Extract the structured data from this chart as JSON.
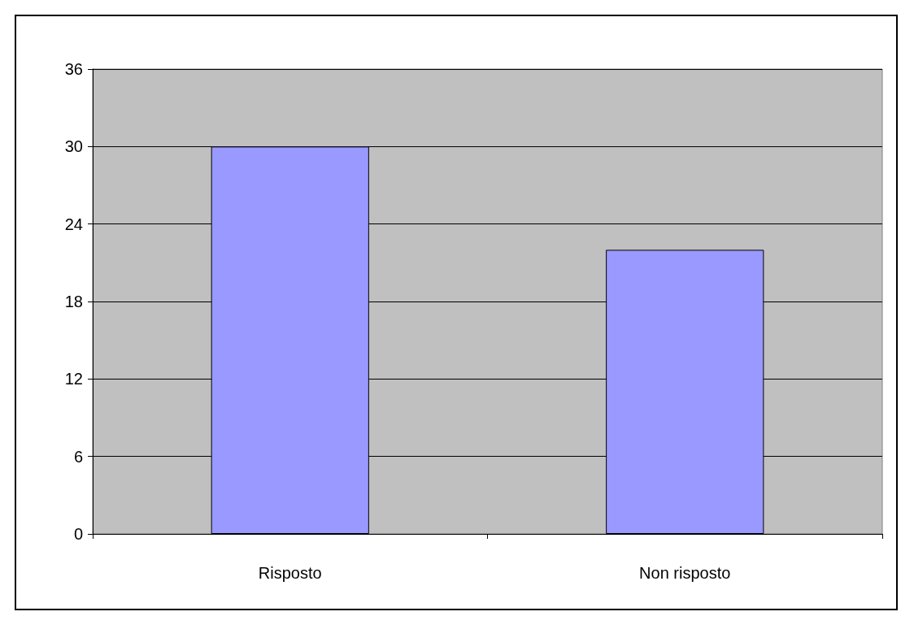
{
  "chart_data": {
    "type": "bar",
    "categories": [
      "Risposto",
      "Non risposto"
    ],
    "values": [
      30,
      22
    ],
    "color": "#9999ff",
    "ylim": [
      0,
      36
    ],
    "yticks": [
      0,
      6,
      12,
      18,
      24,
      30,
      36
    ],
    "grid": "y"
  }
}
